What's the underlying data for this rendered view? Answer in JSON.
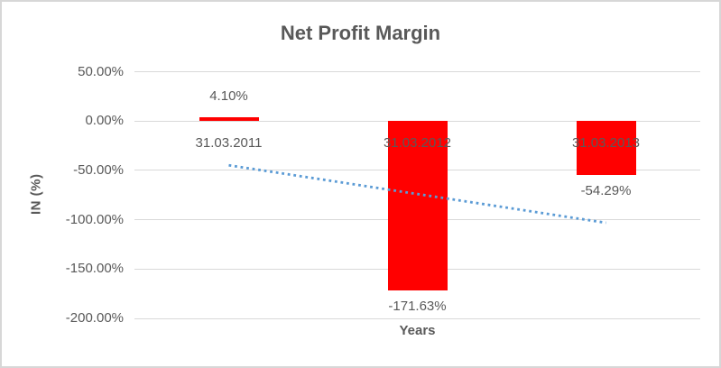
{
  "chart_data": {
    "type": "bar",
    "title": "Net Profit Margin",
    "xlabel": "Years",
    "ylabel": "IN (%)",
    "categories": [
      "31.03.2011",
      "31.03.2012",
      "31.03.2013"
    ],
    "values": [
      4.1,
      -171.63,
      -54.29
    ],
    "data_labels": [
      "4.10%",
      "-171.63%",
      "-54.29%"
    ],
    "y_ticks": [
      50,
      0,
      -50,
      -100,
      -150,
      -200
    ],
    "y_tick_labels": [
      "50.00%",
      "0.00%",
      "-50.00%",
      "-100.00%",
      "-150.00%",
      "-200.00%"
    ],
    "ylim": [
      -200,
      50
    ],
    "grid": true,
    "legend": false,
    "trendline": {
      "type": "linear",
      "style": "dotted",
      "start_value": -44.8,
      "end_value": -103.1
    },
    "colors": {
      "bar": "#FF0000",
      "trendline": "#5B9BD5",
      "text": "#595959",
      "gridline": "#D9D9D9",
      "border": "#D7D7D7",
      "background": "#FFFFFF"
    }
  }
}
